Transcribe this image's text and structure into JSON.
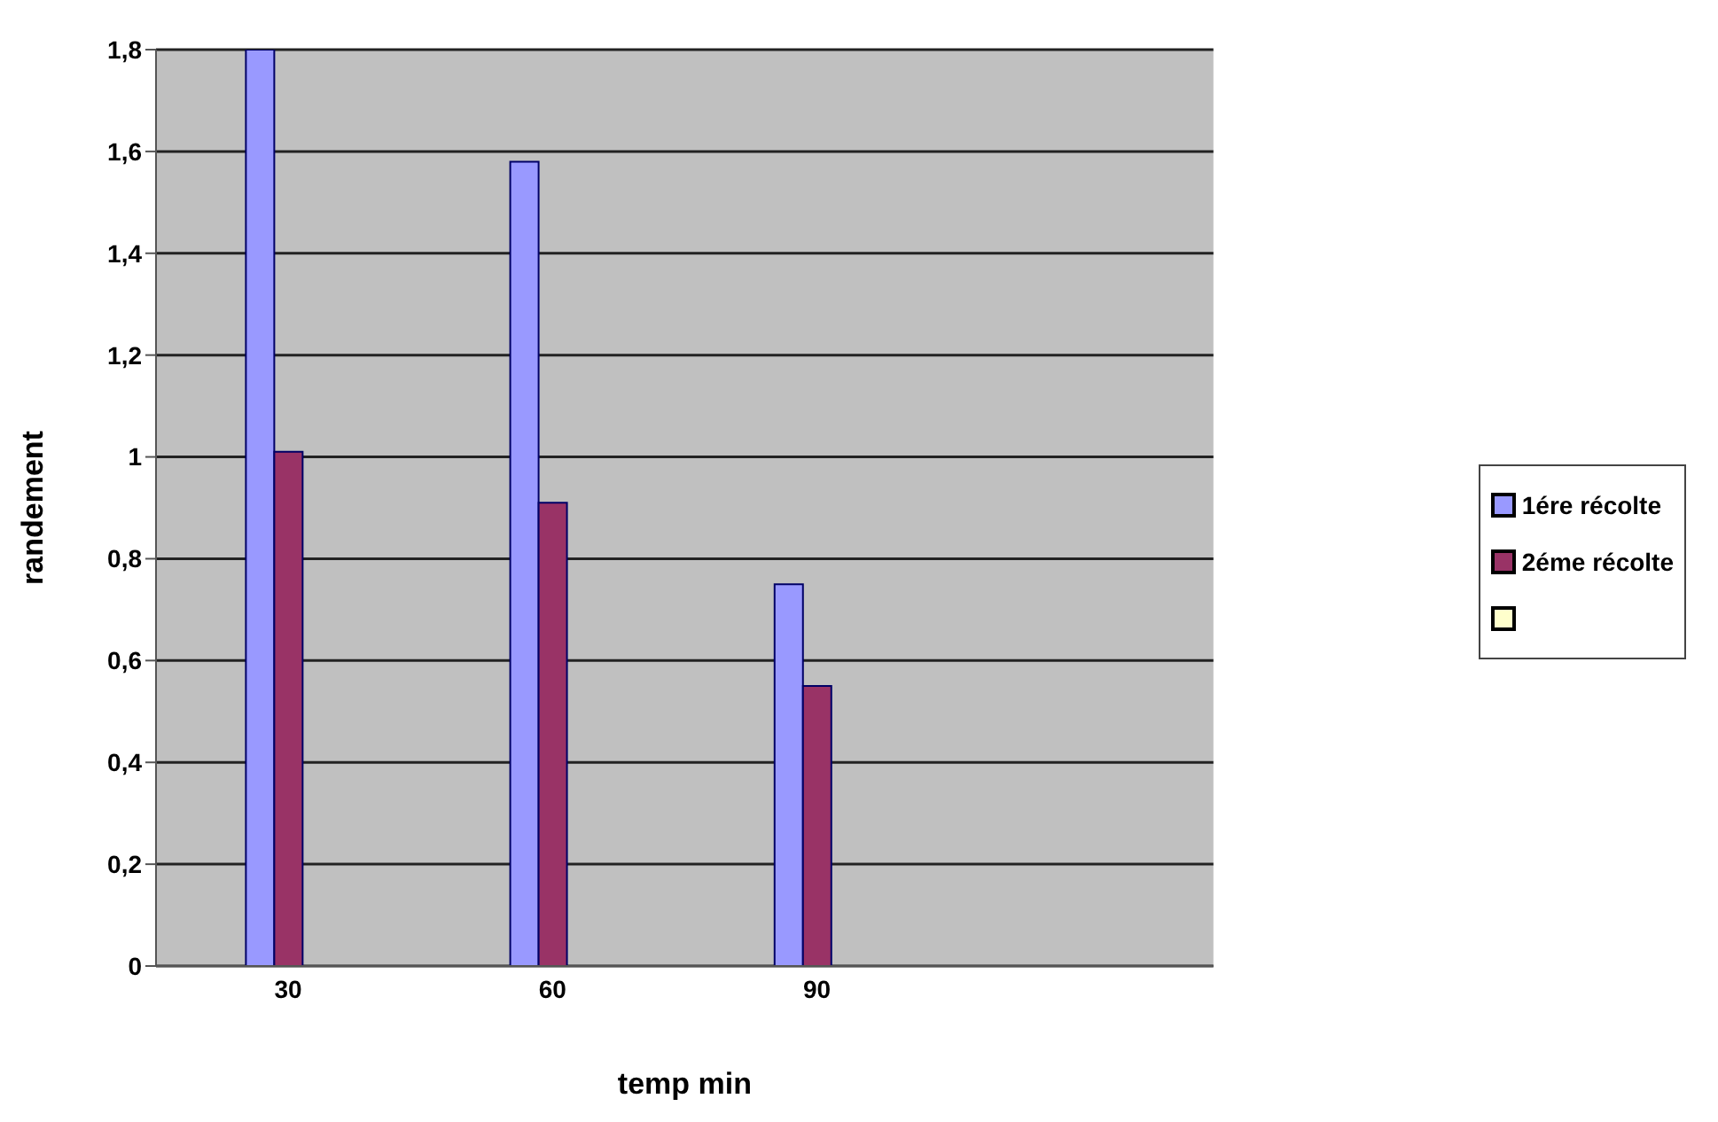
{
  "chart_data": {
    "type": "bar",
    "xlabel": "temp min",
    "ylabel": "randement",
    "categories": [
      "30",
      "60",
      "90",
      null
    ],
    "series": [
      {
        "name": "1ére récolte",
        "color": "#9999ff",
        "values": [
          1.8,
          1.58,
          0.75,
          null
        ]
      },
      {
        "name": "2éme récolte",
        "color": "#993366",
        "values": [
          1.01,
          0.91,
          0.55,
          null
        ]
      },
      {
        "color": "#ffffcc",
        "values": [
          null,
          null,
          null,
          null
        ]
      }
    ],
    "ylim": [
      0,
      1.8
    ],
    "yticks": [
      0,
      {
        "value": 0.2,
        "label": "0,2"
      },
      {
        "value": 0.4,
        "label": "0,4"
      },
      {
        "value": 0.6,
        "label": "0,6"
      },
      {
        "value": 0.8,
        "label": "0,8"
      },
      1,
      {
        "value": 1.2,
        "label": "1,2"
      },
      {
        "value": 1.4,
        "label": "1,4"
      },
      {
        "value": 1.6,
        "label": "1,6"
      },
      {
        "value": 1.8,
        "label": "1,8"
      }
    ],
    "grid": "y",
    "legend": "right"
  }
}
